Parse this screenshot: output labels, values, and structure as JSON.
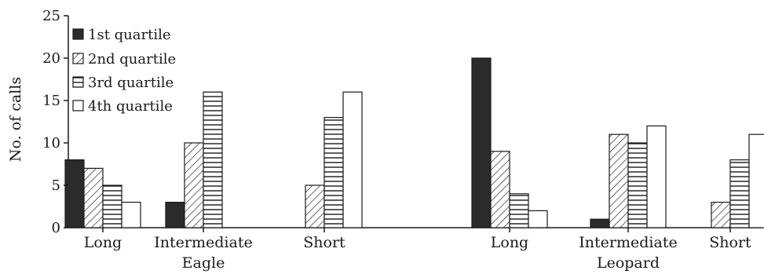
{
  "chart_data": {
    "type": "bar",
    "ylabel": "No. of calls",
    "ylim": [
      0,
      25
    ],
    "yticks": [
      0,
      5,
      10,
      15,
      20,
      25
    ],
    "grid": false,
    "legend_position": "top-left",
    "groups": [
      {
        "name": "Eagle",
        "categories": [
          "Long",
          "Intermediate",
          "Short"
        ]
      },
      {
        "name": "Leopard",
        "categories": [
          "Long",
          "Intermediate",
          "Short"
        ]
      }
    ],
    "categories": [
      "Long",
      "Intermediate",
      "Short",
      "Long",
      "Intermediate",
      "Short"
    ],
    "series": [
      {
        "name": "1st quartile",
        "fill": "solid",
        "values": [
          8,
          3,
          0,
          20,
          1,
          0
        ]
      },
      {
        "name": "2nd quartile",
        "fill": "diagonal",
        "values": [
          7,
          10,
          5,
          9,
          11,
          3
        ]
      },
      {
        "name": "3rd quartile",
        "fill": "horizontal",
        "values": [
          5,
          16,
          13,
          4,
          10,
          8
        ]
      },
      {
        "name": "4th quartile",
        "fill": "empty",
        "values": [
          3,
          0,
          16,
          2,
          12,
          11
        ]
      }
    ]
  }
}
